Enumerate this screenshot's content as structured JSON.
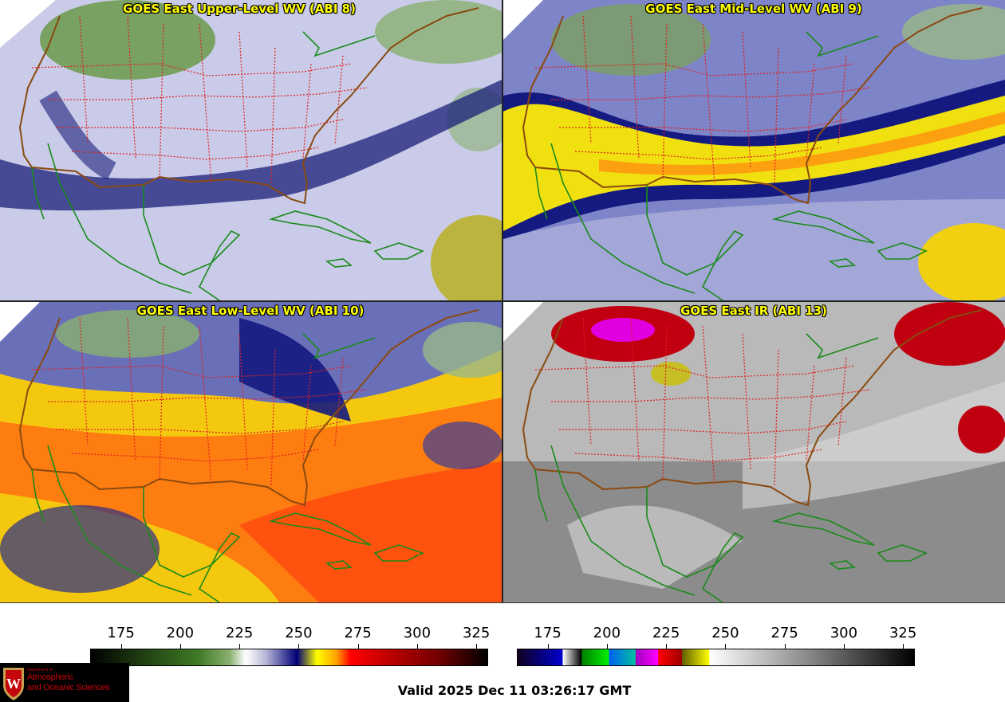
{
  "panels": [
    {
      "title": "GOES East Upper-Level WV (ABI 8)",
      "scheme": "wv",
      "base": "#c8cbe6",
      "dark": "#1a1f7a",
      "warm": "#c8c020",
      "cold": "#5a8a3a"
    },
    {
      "title": "GOES East Mid-Level WV (ABI 9)",
      "scheme": "wv",
      "base": "#8a8fcc",
      "dark": "#141a80",
      "warm": "#f0e010",
      "cold": "#5a8a3a"
    },
    {
      "title": "GOES East Low-Level WV (ABI 10)",
      "scheme": "wv",
      "base": "#f5d010",
      "dark": "#1a1f7a",
      "warm": "#ff5010",
      "cold": "#6a8a4a"
    },
    {
      "title": "GOES East IR (ABI 13)",
      "scheme": "ir",
      "base": "#9a9a9a",
      "dark": "#4a4a4a",
      "warm": "#d0d0d0",
      "cold": "#d00000"
    }
  ],
  "colorbars": [
    {
      "name": "water-vapor",
      "range": [
        162,
        330
      ],
      "ticks": [
        "175",
        "200",
        "225",
        "250",
        "275",
        "300",
        "325"
      ],
      "stops": [
        [
          "#000000",
          0
        ],
        [
          "#1e3a10",
          0.12
        ],
        [
          "#3e7a26",
          0.27
        ],
        [
          "#8ab070",
          0.35
        ],
        [
          "#ffffff",
          0.39
        ],
        [
          "#b8b8d8",
          0.44
        ],
        [
          "#000078",
          0.52
        ],
        [
          "#ffff00",
          0.57
        ],
        [
          "#ffa000",
          0.62
        ],
        [
          "#ff0000",
          0.655
        ],
        [
          "#c00000",
          0.75
        ],
        [
          "#700000",
          0.88
        ],
        [
          "#000000",
          1
        ]
      ]
    },
    {
      "name": "infrared",
      "range": [
        162,
        330
      ],
      "ticks": [
        "175",
        "200",
        "225",
        "250",
        "275",
        "300",
        "325"
      ],
      "stops": [
        [
          "#100020",
          0
        ],
        [
          "#0000d0",
          0.113
        ],
        [
          "#ffffff",
          0.114
        ],
        [
          "#000000",
          0.161
        ],
        [
          "#008000",
          0.162
        ],
        [
          "#00f000",
          0.23
        ],
        [
          "#0060f0",
          0.231
        ],
        [
          "#00c0a0",
          0.297
        ],
        [
          "#a000c0",
          0.298
        ],
        [
          "#ff00ff",
          0.354
        ],
        [
          "#ff0000",
          0.355
        ],
        [
          "#a00000",
          0.414
        ],
        [
          "#606000",
          0.415
        ],
        [
          "#ffff00",
          0.483
        ],
        [
          "#ffffff",
          0.484
        ],
        [
          "#808080",
          0.75
        ],
        [
          "#000000",
          1
        ]
      ]
    }
  ],
  "logo": {
    "dept": "Department of",
    "line1": "Atmospheric",
    "line2": "and Oceanic Sciences",
    "crest": "W"
  },
  "valid_time": "Valid 2025 Dec 11 03:26:17 GMT"
}
